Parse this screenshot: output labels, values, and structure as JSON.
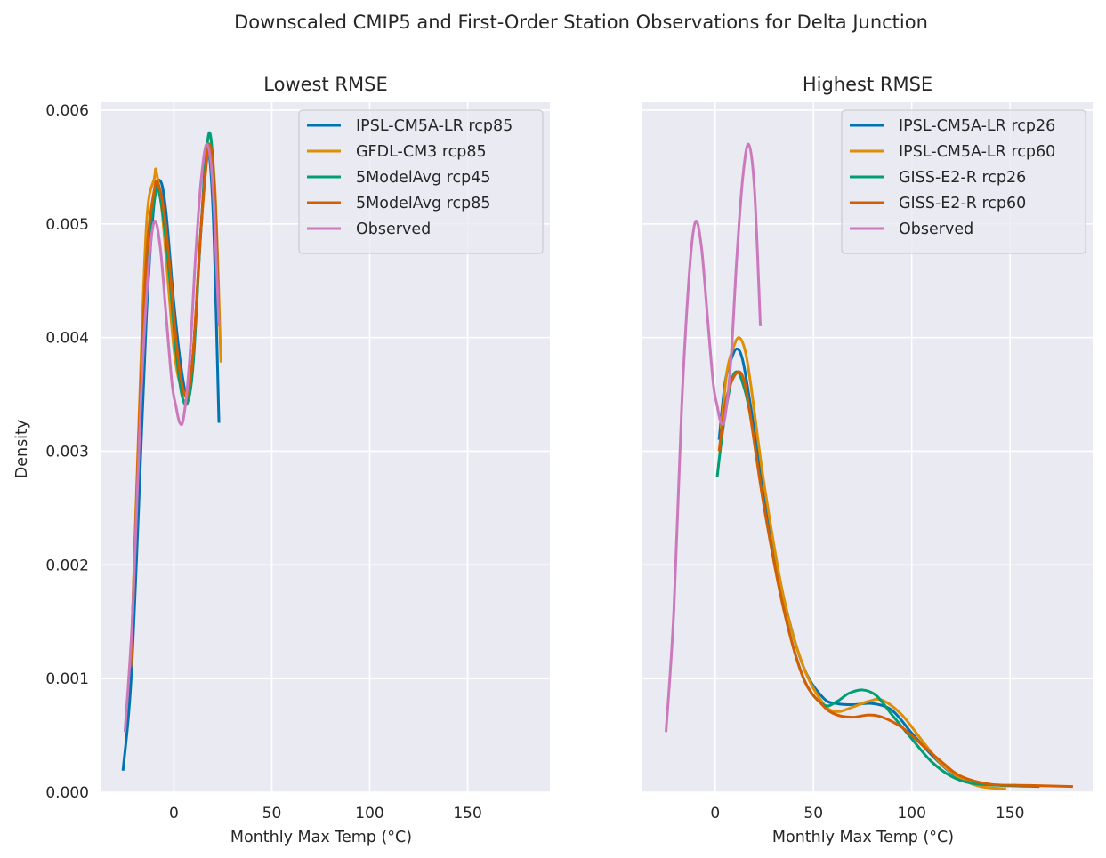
{
  "suptitle": "Downscaled CMIP5 and First-Order Station Observations for Delta Junction",
  "colors": {
    "background": "#eaeaf2",
    "grid": "#ffffff",
    "blue": "#0173b2",
    "orange": "#de8f05",
    "green": "#029e73",
    "red_orange": "#d55e00",
    "pink": "#cc78bc"
  },
  "chart_data": [
    {
      "type": "line",
      "title": "Lowest RMSE",
      "xlabel": "Monthly Max Temp (°C)",
      "ylabel": "Density",
      "xlim": [
        -37,
        192
      ],
      "ylim": [
        0,
        0.00607
      ],
      "xticks": [
        0,
        50,
        100,
        150
      ],
      "xtick_labels": [
        "0",
        "50",
        "100",
        "150"
      ],
      "yticks": [
        0,
        0.001,
        0.002,
        0.003,
        0.004,
        0.005,
        0.006
      ],
      "ytick_labels": [
        "0.000",
        "0.001",
        "0.002",
        "0.003",
        "0.004",
        "0.005",
        "0.006"
      ],
      "grid": true,
      "legend_position": "upper right",
      "series": [
        {
          "name": "IPSL-CM5A-LR rcp85",
          "color": "#0173b2",
          "x": [
            -26,
            -22,
            -18,
            -14,
            -10,
            -7,
            -4,
            0,
            4,
            7,
            10,
            14,
            17,
            20,
            23
          ],
          "y": [
            0.00019,
            0.00095,
            0.0025,
            0.0042,
            0.0052,
            0.00538,
            0.0051,
            0.0043,
            0.0037,
            0.0035,
            0.0039,
            0.005,
            0.00566,
            0.0051,
            0.00325
          ]
        },
        {
          "name": "GFDL-CM3 rcp85",
          "color": "#de8f05",
          "x": [
            -22,
            -18,
            -14,
            -10,
            -9,
            -6,
            -3,
            0,
            3,
            7,
            10,
            14,
            18,
            21,
            24
          ],
          "y": [
            0.0011,
            0.0032,
            0.005,
            0.0054,
            0.00546,
            0.0051,
            0.0045,
            0.0039,
            0.0036,
            0.0035,
            0.0039,
            0.005,
            0.00568,
            0.0053,
            0.00378
          ]
        },
        {
          "name": "5ModelAvg rcp45",
          "color": "#029e73",
          "x": [
            -22,
            -18,
            -14,
            -10,
            -8,
            -5,
            -2,
            1,
            4,
            7,
            10,
            14,
            18,
            21,
            23
          ],
          "y": [
            0.0011,
            0.003,
            0.0046,
            0.0052,
            0.0053,
            0.005,
            0.0045,
            0.0039,
            0.0035,
            0.00343,
            0.0038,
            0.005,
            0.0058,
            0.0052,
            0.0041
          ]
        },
        {
          "name": "5ModelAvg rcp85",
          "color": "#d55e00",
          "x": [
            -22,
            -18,
            -14,
            -10,
            -8,
            -5,
            -2,
            1,
            4,
            7,
            10,
            14,
            18,
            21,
            23
          ],
          "y": [
            0.0011,
            0.0031,
            0.0047,
            0.0053,
            0.00535,
            0.0051,
            0.0046,
            0.004,
            0.0036,
            0.0035,
            0.0039,
            0.005,
            0.0057,
            0.0052,
            0.0041
          ]
        },
        {
          "name": "Observed",
          "color": "#cc78bc",
          "x": [
            -25,
            -21,
            -17,
            -13,
            -10,
            -7,
            -4,
            -1,
            1,
            3,
            5,
            8,
            11,
            14,
            17,
            20,
            23
          ],
          "y": [
            0.00053,
            0.0016,
            0.0034,
            0.0046,
            0.00502,
            0.0048,
            0.0042,
            0.0036,
            0.0034,
            0.00325,
            0.0033,
            0.0038,
            0.0047,
            0.0054,
            0.0057,
            0.0053,
            0.0041
          ]
        }
      ]
    },
    {
      "type": "line",
      "title": "Highest RMSE",
      "xlabel": "Monthly Max Temp (°C)",
      "ylabel": "",
      "xlim": [
        -37,
        192
      ],
      "ylim": [
        0,
        0.00607
      ],
      "xticks": [
        0,
        50,
        100,
        150
      ],
      "xtick_labels": [
        "0",
        "50",
        "100",
        "150"
      ],
      "yticks": [
        0,
        0.001,
        0.002,
        0.003,
        0.004,
        0.005,
        0.006
      ],
      "grid": true,
      "legend_position": "upper right",
      "series": [
        {
          "name": "IPSL-CM5A-LR rcp26",
          "color": "#0173b2",
          "x": [
            2,
            5,
            8,
            11,
            14,
            18,
            25,
            35,
            45,
            55,
            62,
            70,
            80,
            90,
            100,
            110,
            120,
            130
          ],
          "y": [
            0.0031,
            0.0036,
            0.0038,
            0.0039,
            0.0038,
            0.0034,
            0.0026,
            0.0017,
            0.0011,
            0.00083,
            0.00078,
            0.00077,
            0.00078,
            0.00072,
            0.00052,
            0.00033,
            0.00017,
            8e-05
          ]
        },
        {
          "name": "IPSL-CM5A-LR rcp60",
          "color": "#de8f05",
          "x": [
            3,
            6,
            9,
            12,
            15,
            18,
            25,
            35,
            45,
            55,
            62,
            70,
            78,
            85,
            95,
            105,
            115,
            125,
            135,
            148
          ],
          "y": [
            0.0032,
            0.0037,
            0.0039,
            0.004,
            0.0039,
            0.0036,
            0.0027,
            0.0017,
            0.0011,
            0.00078,
            0.00071,
            0.00075,
            0.0008,
            0.00081,
            0.00068,
            0.00046,
            0.00025,
            0.00012,
            5e-05,
            3e-05
          ]
        },
        {
          "name": "GISS-E2-R rcp26",
          "color": "#029e73",
          "x": [
            1,
            4,
            8,
            11,
            14,
            18,
            25,
            35,
            45,
            55,
            62,
            68,
            75,
            82,
            90,
            100,
            110,
            120,
            130,
            145,
            165
          ],
          "y": [
            0.00277,
            0.0032,
            0.0036,
            0.0037,
            0.0036,
            0.0033,
            0.0025,
            0.0016,
            0.001,
            0.00077,
            0.0008,
            0.00087,
            0.0009,
            0.00085,
            0.00068,
            0.00047,
            0.00027,
            0.00014,
            8e-05,
            6e-05,
            5e-05
          ]
        },
        {
          "name": "GISS-E2-R rcp60",
          "color": "#d55e00",
          "x": [
            2,
            5,
            8,
            12,
            15,
            18,
            25,
            35,
            45,
            55,
            62,
            70,
            78,
            85,
            95,
            105,
            115,
            125,
            140,
            160,
            182
          ],
          "y": [
            0.003,
            0.0034,
            0.0036,
            0.0037,
            0.0036,
            0.0033,
            0.0025,
            0.0016,
            0.001,
            0.00076,
            0.00068,
            0.00066,
            0.00068,
            0.00066,
            0.00057,
            0.00042,
            0.00027,
            0.00014,
            7e-05,
            6e-05,
            5e-05
          ]
        },
        {
          "name": "Observed",
          "color": "#cc78bc",
          "x": [
            -25,
            -21,
            -17,
            -13,
            -10,
            -7,
            -4,
            -1,
            1,
            3,
            5,
            8,
            11,
            14,
            17,
            20,
            23
          ],
          "y": [
            0.00053,
            0.0016,
            0.0034,
            0.0046,
            0.00502,
            0.0048,
            0.0042,
            0.0036,
            0.0034,
            0.00325,
            0.0033,
            0.0038,
            0.0047,
            0.0054,
            0.0057,
            0.0053,
            0.0041
          ]
        }
      ]
    }
  ]
}
